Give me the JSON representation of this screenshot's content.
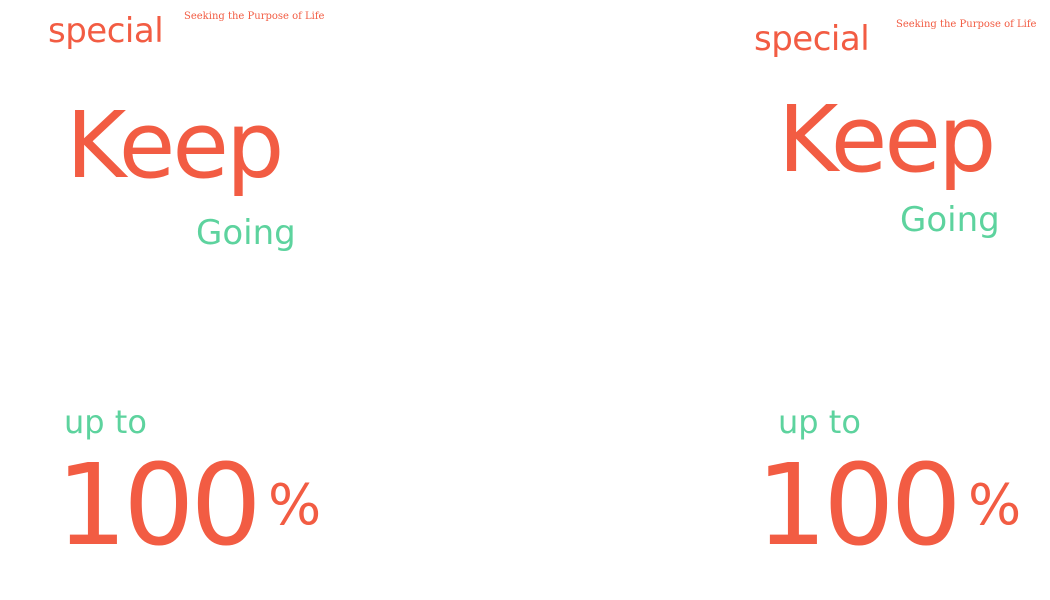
{
  "colors": {
    "coral": "#f25c43",
    "mint": "#5dd39e",
    "background": "#ffffff"
  },
  "panels": [
    {
      "special": "special",
      "tagline": "Seeking the Purpose of Life",
      "keep": "Keep",
      "going": "Going",
      "up_to": "up to",
      "number": "100",
      "percent": "%"
    },
    {
      "special": "special",
      "tagline": "Seeking the Purpose of Life",
      "keep": "Keep",
      "going": "Going",
      "up_to": "up to",
      "number": "100",
      "percent": "%"
    }
  ]
}
